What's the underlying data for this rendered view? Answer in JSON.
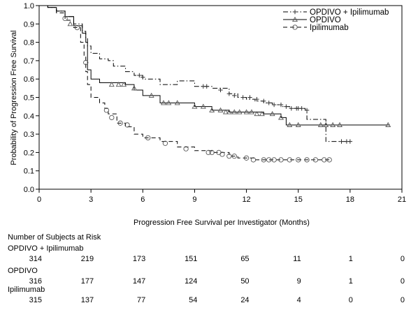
{
  "chart_data": {
    "type": "line",
    "subtype": "kaplan-meier",
    "xlabel": "Progression Free Survival per Investigator (Months)",
    "ylabel": "Probability of Progression Free Survival",
    "xlim": [
      0,
      21
    ],
    "ylim": [
      0,
      1.0
    ],
    "xticks": [
      "0",
      "3",
      "6",
      "9",
      "12",
      "15",
      "18",
      "21"
    ],
    "yticks": [
      "0.0",
      "0.1",
      "0.2",
      "0.3",
      "0.4",
      "0.5",
      "0.6",
      "0.7",
      "0.8",
      "0.9",
      "1.0"
    ],
    "legend_position": "top-right",
    "series": [
      {
        "name": "OPDIVO + Ipilimumab",
        "line_style": "dash-dot",
        "marker": "plus",
        "x": [
          0,
          0.5,
          1.0,
          1.5,
          2.0,
          2.5,
          2.7,
          2.8,
          3.0,
          3.5,
          4.0,
          4.3,
          5.0,
          5.5,
          6.0,
          7.0,
          8.0,
          9.0,
          10.0,
          11.0,
          11.5,
          12.0,
          12.5,
          13.0,
          13.5,
          14.0,
          14.5,
          15.0,
          15.4,
          15.5,
          16.5,
          16.6,
          17.0,
          18.0
        ],
        "y": [
          1.0,
          0.99,
          0.97,
          0.94,
          0.9,
          0.86,
          0.82,
          0.78,
          0.74,
          0.71,
          0.7,
          0.67,
          0.64,
          0.62,
          0.6,
          0.57,
          0.59,
          0.56,
          0.55,
          0.52,
          0.5,
          0.49,
          0.48,
          0.47,
          0.46,
          0.45,
          0.44,
          0.44,
          0.43,
          0.38,
          0.38,
          0.26,
          0.26,
          0.26
        ],
        "censored_x": [
          5.8,
          6.0,
          9.5,
          9.7,
          10.5,
          11.0,
          11.3,
          11.8,
          12.2,
          12.6,
          13.0,
          13.3,
          13.6,
          14.0,
          14.3,
          14.6,
          14.9,
          15.0,
          15.2,
          15.5,
          17.5,
          17.8,
          18.0
        ],
        "censored_y": [
          0.62,
          0.61,
          0.56,
          0.56,
          0.54,
          0.52,
          0.51,
          0.5,
          0.5,
          0.49,
          0.48,
          0.47,
          0.46,
          0.46,
          0.45,
          0.44,
          0.44,
          0.44,
          0.44,
          0.43,
          0.26,
          0.26,
          0.26
        ]
      },
      {
        "name": "OPDIVO",
        "line_style": "solid",
        "marker": "triangle",
        "x": [
          0,
          0.5,
          1.0,
          1.5,
          2.0,
          2.5,
          2.7,
          2.8,
          3.0,
          3.5,
          4.0,
          5.0,
          5.5,
          6.0,
          7.0,
          8.0,
          9.0,
          10.0,
          11.0,
          12.0,
          13.0,
          14.0,
          14.3,
          14.5,
          16.5,
          20.3
        ],
        "y": [
          1.0,
          0.99,
          0.97,
          0.94,
          0.89,
          0.85,
          0.8,
          0.65,
          0.6,
          0.58,
          0.58,
          0.57,
          0.54,
          0.51,
          0.47,
          0.47,
          0.45,
          0.43,
          0.42,
          0.42,
          0.41,
          0.39,
          0.35,
          0.35,
          0.35,
          0.35
        ],
        "censored_x": [
          1.8,
          4.2,
          4.6,
          4.9,
          5.5,
          6.5,
          7.2,
          7.5,
          8.0,
          9.0,
          9.5,
          10.0,
          10.5,
          10.8,
          11.0,
          11.3,
          11.6,
          12.0,
          12.3,
          12.6,
          12.9,
          13.5,
          14.0,
          14.5,
          15.0,
          16.3,
          16.6,
          17.0,
          17.4,
          20.2
        ],
        "censored_y": [
          0.9,
          0.57,
          0.57,
          0.57,
          0.55,
          0.51,
          0.47,
          0.47,
          0.47,
          0.45,
          0.45,
          0.43,
          0.43,
          0.42,
          0.42,
          0.42,
          0.42,
          0.42,
          0.42,
          0.41,
          0.41,
          0.41,
          0.39,
          0.35,
          0.35,
          0.35,
          0.35,
          0.35,
          0.35,
          0.35
        ]
      },
      {
        "name": "Ipilimumab",
        "line_style": "dashed",
        "marker": "circle",
        "x": [
          0,
          0.5,
          1.0,
          1.5,
          2.0,
          2.4,
          2.6,
          2.7,
          2.8,
          3.0,
          3.5,
          3.8,
          4.0,
          4.5,
          5.0,
          5.5,
          6.0,
          7.0,
          8.0,
          9.0,
          10.0,
          11.0,
          11.5,
          12.0,
          12.5,
          16.8
        ],
        "y": [
          1.0,
          0.99,
          0.96,
          0.92,
          0.88,
          0.8,
          0.72,
          0.64,
          0.57,
          0.5,
          0.47,
          0.44,
          0.41,
          0.36,
          0.34,
          0.3,
          0.28,
          0.26,
          0.23,
          0.21,
          0.2,
          0.18,
          0.17,
          0.17,
          0.16,
          0.16
        ],
        "censored_x": [
          1.5,
          2.2,
          2.7,
          3.9,
          4.2,
          4.7,
          5.1,
          6.3,
          7.3,
          8.5,
          9.8,
          10.0,
          10.4,
          10.6,
          11.0,
          11.3,
          12.0,
          12.4,
          13.0,
          13.3,
          13.6,
          14.0,
          14.5,
          15.0,
          15.5,
          16.0,
          16.5,
          16.8
        ],
        "censored_y": [
          0.93,
          0.88,
          0.69,
          0.43,
          0.39,
          0.36,
          0.35,
          0.28,
          0.25,
          0.22,
          0.2,
          0.2,
          0.2,
          0.19,
          0.18,
          0.18,
          0.17,
          0.16,
          0.16,
          0.16,
          0.16,
          0.16,
          0.16,
          0.16,
          0.16,
          0.16,
          0.16,
          0.16
        ]
      }
    ]
  },
  "risk_table": {
    "title": "Number of Subjects at Risk",
    "rows": [
      {
        "label": "OPDIVO + Ipilimumab",
        "values": [
          "314",
          "219",
          "173",
          "151",
          "65",
          "11",
          "1",
          "0"
        ]
      },
      {
        "label": "OPDIVO",
        "values": [
          "316",
          "177",
          "147",
          "124",
          "50",
          "9",
          "1",
          "0"
        ]
      },
      {
        "label": "Ipilimumab",
        "values": [
          "315",
          "137",
          "77",
          "54",
          "24",
          "4",
          "0",
          "0"
        ]
      }
    ]
  }
}
